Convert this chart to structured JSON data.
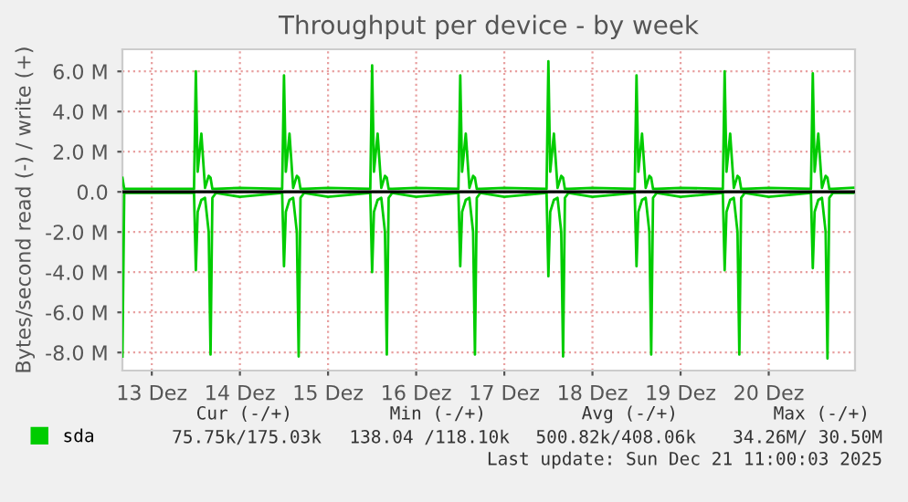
{
  "chart_data": {
    "type": "line",
    "title": "Throughput per device - by week",
    "ylabel": "Bytes/second read (-) / write (+)",
    "x": [
      "2025-12-13T04:00",
      "2025-12-13T04:30",
      "2025-12-13T12:00",
      "2025-12-13T23:30",
      "2025-12-14T00:00",
      "2025-12-14T00:30",
      "2025-12-14T01:30",
      "2025-12-14T02:30",
      "2025-12-14T03:30",
      "2025-12-14T04:00",
      "2025-12-14T04:30",
      "2025-12-14T05:30",
      "2025-12-14T12:00",
      "2025-12-14T23:30",
      "2025-12-15T00:00",
      "2025-12-15T00:30",
      "2025-12-15T01:30",
      "2025-12-15T02:30",
      "2025-12-15T03:30",
      "2025-12-15T04:00",
      "2025-12-15T04:30",
      "2025-12-15T05:30",
      "2025-12-15T12:00",
      "2025-12-15T23:30",
      "2025-12-16T00:00",
      "2025-12-16T00:30",
      "2025-12-16T01:30",
      "2025-12-16T02:30",
      "2025-12-16T03:30",
      "2025-12-16T04:00",
      "2025-12-16T04:30",
      "2025-12-16T05:30",
      "2025-12-16T12:00",
      "2025-12-16T23:30",
      "2025-12-17T00:00",
      "2025-12-17T00:30",
      "2025-12-17T01:30",
      "2025-12-17T02:30",
      "2025-12-17T03:30",
      "2025-12-17T04:00",
      "2025-12-17T04:30",
      "2025-12-17T05:30",
      "2025-12-17T12:00",
      "2025-12-17T23:30",
      "2025-12-18T00:00",
      "2025-12-18T00:30",
      "2025-12-18T01:30",
      "2025-12-18T02:30",
      "2025-12-18T03:30",
      "2025-12-18T04:00",
      "2025-12-18T04:30",
      "2025-12-18T05:30",
      "2025-12-18T12:00",
      "2025-12-18T23:30",
      "2025-12-19T00:00",
      "2025-12-19T00:30",
      "2025-12-19T01:30",
      "2025-12-19T02:30",
      "2025-12-19T03:30",
      "2025-12-19T04:00",
      "2025-12-19T04:30",
      "2025-12-19T05:30",
      "2025-12-19T12:00",
      "2025-12-19T23:30",
      "2025-12-20T00:00",
      "2025-12-20T00:30",
      "2025-12-20T01:30",
      "2025-12-20T02:30",
      "2025-12-20T03:30",
      "2025-12-20T04:00",
      "2025-12-20T04:30",
      "2025-12-20T05:30",
      "2025-12-20T12:00",
      "2025-12-20T23:30",
      "2025-12-21T00:00",
      "2025-12-21T00:30",
      "2025-12-21T01:30",
      "2025-12-21T02:30",
      "2025-12-21T03:30",
      "2025-12-21T04:00",
      "2025-12-21T04:30",
      "2025-12-21T05:30",
      "2025-12-21T11:00"
    ],
    "series": [
      {
        "name": "sda",
        "color": "#00cc00",
        "values": [
          700000,
          150000,
          150000,
          150000,
          6000000,
          1000000,
          2900000,
          200000,
          800000,
          700000,
          150000,
          150000,
          200000,
          150000,
          5800000,
          1000000,
          2900000,
          200000,
          800000,
          700000,
          150000,
          150000,
          200000,
          150000,
          6300000,
          1000000,
          2900000,
          200000,
          800000,
          700000,
          150000,
          150000,
          200000,
          150000,
          5800000,
          1000000,
          2900000,
          200000,
          800000,
          700000,
          150000,
          150000,
          200000,
          150000,
          6500000,
          1000000,
          2900000,
          200000,
          800000,
          700000,
          150000,
          150000,
          200000,
          150000,
          5800000,
          1000000,
          2900000,
          200000,
          800000,
          700000,
          150000,
          150000,
          200000,
          150000,
          6000000,
          1000000,
          2900000,
          200000,
          800000,
          700000,
          150000,
          150000,
          200000,
          150000,
          5900000,
          1000000,
          2900000,
          200000,
          800000,
          700000,
          150000,
          150000,
          200000
        ]
      },
      {
        "color": "#00cc00",
        "values": [
          -8200000,
          -50000,
          -50000,
          -50000,
          -3900000,
          -1000000,
          -400000,
          -300000,
          -2000000,
          -8100000,
          -300000,
          -50000,
          -250000,
          -50000,
          -3700000,
          -1000000,
          -400000,
          -300000,
          -2000000,
          -8200000,
          -300000,
          -50000,
          -250000,
          -50000,
          -4000000,
          -1000000,
          -400000,
          -300000,
          -2000000,
          -8100000,
          -300000,
          -50000,
          -250000,
          -50000,
          -3700000,
          -1000000,
          -400000,
          -300000,
          -2000000,
          -8100000,
          -300000,
          -50000,
          -250000,
          -50000,
          -4200000,
          -1000000,
          -400000,
          -300000,
          -2000000,
          -8200000,
          -300000,
          -50000,
          -250000,
          -50000,
          -3700000,
          -1000000,
          -400000,
          -300000,
          -2000000,
          -8100000,
          -300000,
          -50000,
          -250000,
          -50000,
          -3900000,
          -1000000,
          -400000,
          -300000,
          -2000000,
          -8100000,
          -300000,
          -50000,
          -250000,
          -50000,
          -3800000,
          -1000000,
          -400000,
          -300000,
          -2000000,
          -8300000,
          -300000,
          -50000,
          -50000
        ]
      }
    ],
    "xlim": [
      "2025-12-13T04:00",
      "2025-12-21T11:30"
    ],
    "xticks": [
      {
        "value": "2025-12-13T12:00",
        "label": "13 Dez"
      },
      {
        "value": "2025-12-14T12:00",
        "label": "14 Dez"
      },
      {
        "value": "2025-12-15T12:00",
        "label": "15 Dez"
      },
      {
        "value": "2025-12-16T12:00",
        "label": "16 Dez"
      },
      {
        "value": "2025-12-17T12:00",
        "label": "17 Dez"
      },
      {
        "value": "2025-12-18T12:00",
        "label": "18 Dez"
      },
      {
        "value": "2025-12-19T12:00",
        "label": "19 Dez"
      },
      {
        "value": "2025-12-20T12:00",
        "label": "20 Dez"
      }
    ],
    "ylim": [
      -8900000,
      7100000
    ],
    "yticks": [
      {
        "value": -8000000,
        "label": "-8.0 M"
      },
      {
        "value": -6000000,
        "label": "-6.0 M"
      },
      {
        "value": -4000000,
        "label": "-4.0 M"
      },
      {
        "value": -2000000,
        "label": "-2.0 M"
      },
      {
        "value": 0,
        "label": "0.0"
      },
      {
        "value": 2000000,
        "label": "2.0 M"
      },
      {
        "value": 4000000,
        "label": "4.0 M"
      },
      {
        "value": 6000000,
        "label": "6.0 M"
      }
    ],
    "ref_lines": [
      {
        "axis": "y",
        "value": 0,
        "color": "#000000"
      }
    ],
    "grid": true,
    "legend": "bottom left",
    "marker": "none",
    "line_style": "solid",
    "annotations": [
      "Cur (-/+)",
      "Min (-/+)",
      "Avg (-/+)",
      "Max (-/+)",
      "75.75k/175.03k",
      "138.04 /118.10k",
      "500.82k/408.06k",
      "34.26M/ 30.50M",
      "Last update: Sun Dec 21 11:00:03 2025"
    ]
  }
}
